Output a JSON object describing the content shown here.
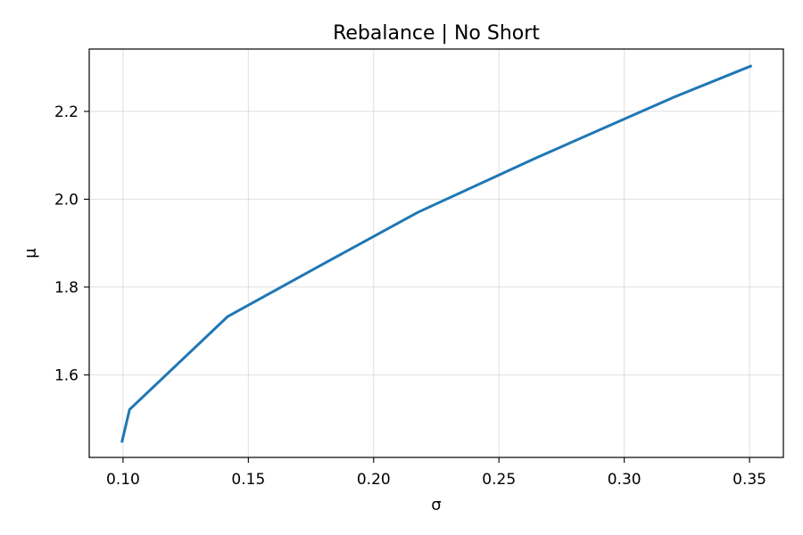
{
  "chart_data": {
    "type": "line",
    "title": "Rebalance | No Short",
    "xlabel": "σ",
    "ylabel": "μ",
    "xlim": [
      0.0865,
      0.3635
    ],
    "ylim": [
      1.412,
      2.342
    ],
    "xticks": [
      0.1,
      0.15,
      0.2,
      0.25,
      0.3,
      0.35
    ],
    "xtick_labels": [
      "0.10",
      "0.15",
      "0.20",
      "0.25",
      "0.30",
      "0.35"
    ],
    "yticks": [
      1.6,
      1.8,
      2.0,
      2.2
    ],
    "ytick_labels": [
      "1.6",
      "1.8",
      "2.0",
      "2.2"
    ],
    "grid": true,
    "series": [
      {
        "color": "#1f77b4",
        "x": [
          0.0995,
          0.1026,
          0.1418,
          0.1787,
          0.2176,
          0.2644,
          0.3192,
          0.3491,
          0.3509
        ],
        "y": [
          1.446,
          1.521,
          1.733,
          1.849,
          1.97,
          2.093,
          2.231,
          2.3,
          2.304
        ]
      }
    ]
  }
}
